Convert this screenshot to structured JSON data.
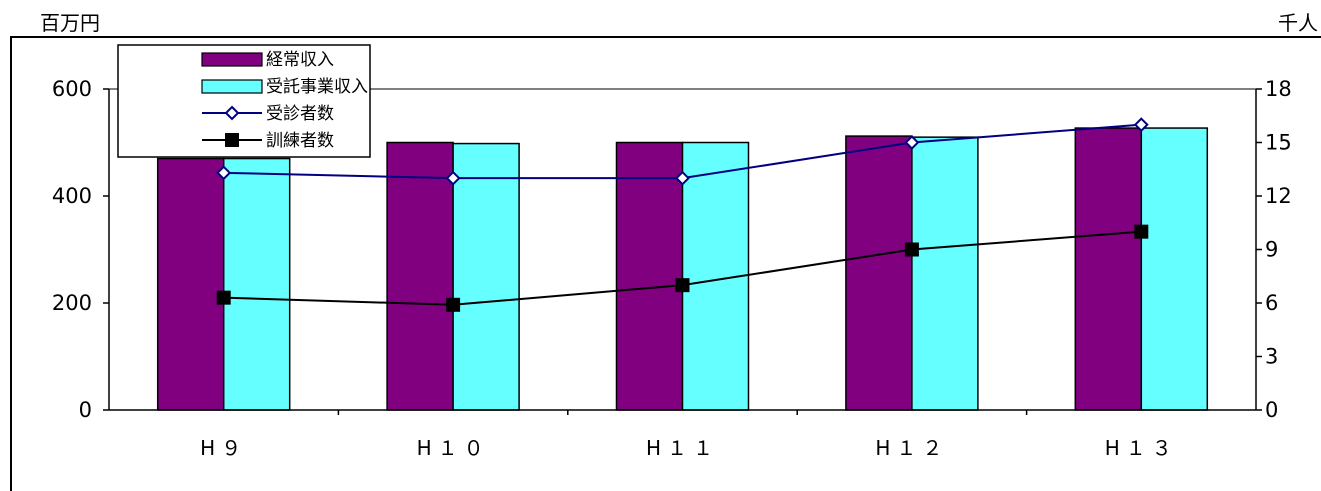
{
  "chart_data": {
    "type": "bar",
    "title": "",
    "y_left_unit": "百万円",
    "y_right_unit": "千人",
    "categories": [
      "H９",
      "H１０",
      "H１１",
      "H１２",
      "H１３"
    ],
    "y_left": {
      "min": 0,
      "max": 600,
      "step": 200,
      "ticks": [
        "0",
        "200",
        "400",
        "600"
      ]
    },
    "y_right": {
      "min": 0,
      "max": 18,
      "step": 3,
      "ticks": [
        "0",
        "3",
        "6",
        "9",
        "12",
        "15",
        "18"
      ]
    },
    "grid": "horizontal at 600 only",
    "legend_position": "top-left",
    "bar_series": [
      {
        "name": "経常収入",
        "axis": "left",
        "color": "#800080",
        "values": [
          470,
          500,
          500,
          512,
          527
        ]
      },
      {
        "name": "受託事業収入",
        "axis": "left",
        "color": "#66FFFF",
        "values": [
          470,
          498,
          500,
          510,
          527
        ]
      }
    ],
    "line_series": [
      {
        "name": "受診者数",
        "axis": "right",
        "color": "#000080",
        "marker": "diamond-open",
        "values": [
          13.3,
          13.0,
          13.0,
          15.0,
          16.0
        ]
      },
      {
        "name": "訓練者数",
        "axis": "right",
        "color": "#000000",
        "marker": "square-filled",
        "values": [
          6.3,
          5.9,
          7.0,
          9.0,
          10.0
        ]
      }
    ]
  }
}
